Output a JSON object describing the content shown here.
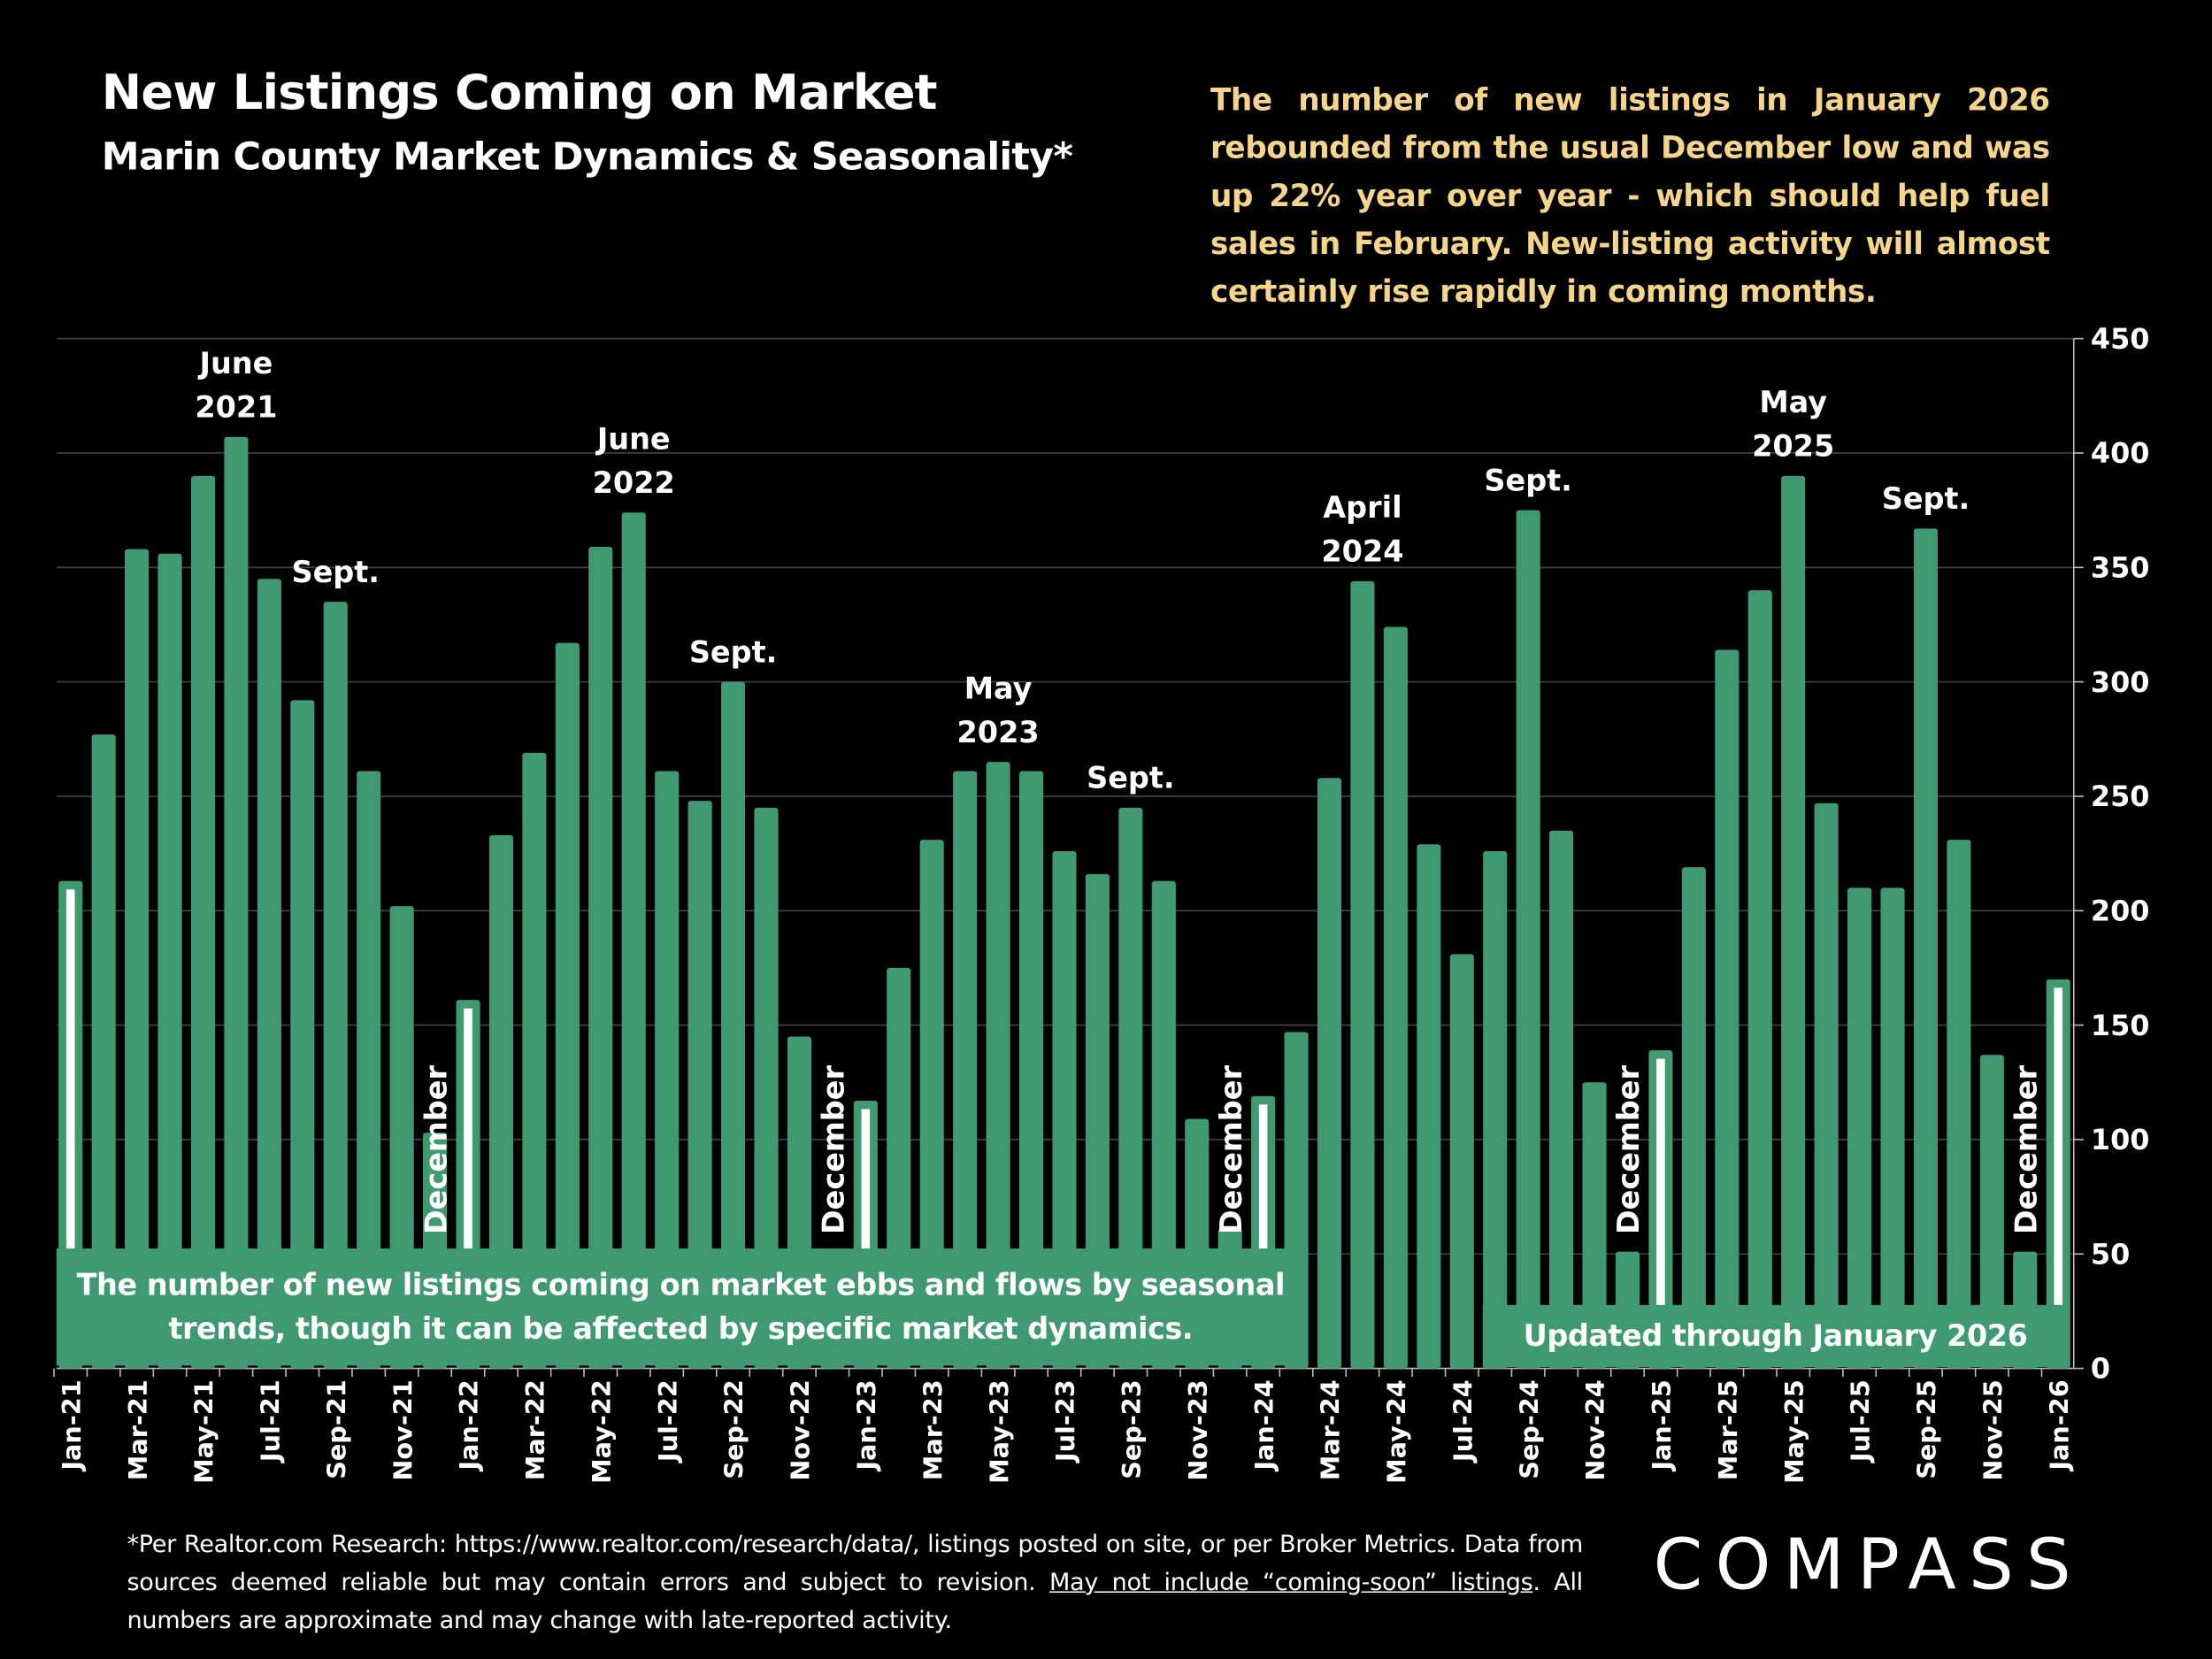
{
  "header": {
    "title": "New Listings Coming on Market",
    "subtitle": "Marin County Market Dynamics & Seasonality*"
  },
  "note": "The number of new listings in January 2026 rebounded from the usual December low and was up 22% year over year - which should help fuel sales in February. New-listing activity will almost certainly rise rapidly in coming months.",
  "boxes": {
    "left": "The number of new listings coming on market ebbs and flows by seasonal trends, though it can be affected by specific market dynamics.",
    "right": "Updated through January 2026"
  },
  "footer": {
    "part1": "*Per Realtor.com Research:  https://www.realtor.com/research/data/, listings posted on site, or per Broker Metrics. Data from sources deemed reliable but may contain errors and subject to revision. ",
    "underlined": "May not include “coming-soon” listings",
    "part2": ". All numbers are approximate and may change with late-reported activity."
  },
  "logo": "COMPASS",
  "colors": {
    "bar": "#3f9a72",
    "note": "#f5d58a",
    "highlight": "#ffffff"
  },
  "chart_data": {
    "type": "bar",
    "categories": [
      "Jan-21",
      "Feb-21",
      "Mar-21",
      "Apr-21",
      "May-21",
      "Jun-21",
      "Jul-21",
      "Aug-21",
      "Sep-21",
      "Oct-21",
      "Nov-21",
      "Dec-21",
      "Jan-22",
      "Feb-22",
      "Mar-22",
      "Apr-22",
      "May-22",
      "Jun-22",
      "Jul-22",
      "Aug-22",
      "Sep-22",
      "Oct-22",
      "Nov-22",
      "Dec-22",
      "Jan-23",
      "Feb-23",
      "Mar-23",
      "Apr-23",
      "May-23",
      "Jun-23",
      "Jul-23",
      "Aug-23",
      "Sep-23",
      "Oct-23",
      "Nov-23",
      "Dec-23",
      "Jan-24",
      "Feb-24",
      "Mar-24",
      "Apr-24",
      "May-24",
      "Jun-24",
      "Jul-24",
      "Aug-24",
      "Sep-24",
      "Oct-24",
      "Nov-24",
      "Dec-24",
      "Jan-25",
      "Feb-25",
      "Mar-25",
      "Apr-25",
      "May-25",
      "Jun-25",
      "Jul-25",
      "Aug-25",
      "Sep-25",
      "Oct-25",
      "Nov-25",
      "Dec-25",
      "Jan-26"
    ],
    "values": [
      213,
      277,
      358,
      356,
      390,
      407,
      345,
      292,
      335,
      261,
      202,
      103,
      161,
      233,
      269,
      317,
      359,
      374,
      261,
      248,
      300,
      245,
      145,
      45,
      117,
      175,
      231,
      261,
      265,
      261,
      226,
      216,
      245,
      213,
      109,
      61,
      119,
      147,
      258,
      344,
      324,
      229,
      181,
      226,
      375,
      235,
      125,
      51,
      139,
      219,
      314,
      340,
      390,
      247,
      210,
      210,
      367,
      231,
      137,
      51,
      170
    ],
    "highlighted_months": [
      "Jan-21",
      "Jan-22",
      "Jan-23",
      "Jan-24",
      "Jan-25",
      "Jan-26"
    ],
    "annotations": [
      {
        "month": "Jun-21",
        "lines": [
          "June",
          "2021"
        ]
      },
      {
        "month": "Sep-21",
        "lines": [
          "Sept."
        ]
      },
      {
        "month": "Jun-22",
        "lines": [
          "June",
          "2022"
        ]
      },
      {
        "month": "Sep-22",
        "lines": [
          "Sept."
        ]
      },
      {
        "month": "May-23",
        "lines": [
          "May",
          "2023"
        ]
      },
      {
        "month": "Sep-23",
        "lines": [
          "Sept."
        ]
      },
      {
        "month": "Apr-24",
        "lines": [
          "April",
          "2024"
        ]
      },
      {
        "month": "Sep-24",
        "lines": [
          "Sept."
        ]
      },
      {
        "month": "May-25",
        "lines": [
          "May",
          "2025"
        ]
      },
      {
        "month": "Sep-25",
        "lines": [
          "Sept."
        ]
      }
    ],
    "december_labels": [
      {
        "month": "Dec-21",
        "text": "December"
      },
      {
        "month": "Dec-22",
        "text": "December"
      },
      {
        "month": "Dec-23",
        "text": "December"
      },
      {
        "month": "Dec-24",
        "text": "December"
      },
      {
        "month": "Dec-25",
        "text": "December"
      }
    ],
    "xtick_labels": [
      "Jan-21",
      "Mar-21",
      "May-21",
      "Jul-21",
      "Sep-21",
      "Nov-21",
      "Jan-22",
      "Mar-22",
      "May-22",
      "Jul-22",
      "Sep-22",
      "Nov-22",
      "Jan-23",
      "Mar-23",
      "May-23",
      "Jul-23",
      "Sep-23",
      "Nov-23",
      "Jan-24",
      "Mar-24",
      "May-24",
      "Jul-24",
      "Sep-24",
      "Nov-24",
      "Jan-25",
      "Mar-25",
      "May-25",
      "Jul-25",
      "Sep-25",
      "Nov-25",
      "Jan-26"
    ],
    "yticks": [
      0,
      50,
      100,
      150,
      200,
      250,
      300,
      350,
      400,
      450
    ],
    "ylim": [
      0,
      450
    ],
    "y_axis_side": "right",
    "grid": true,
    "title": "New Listings Coming on Market",
    "xlabel": "",
    "ylabel": ""
  }
}
